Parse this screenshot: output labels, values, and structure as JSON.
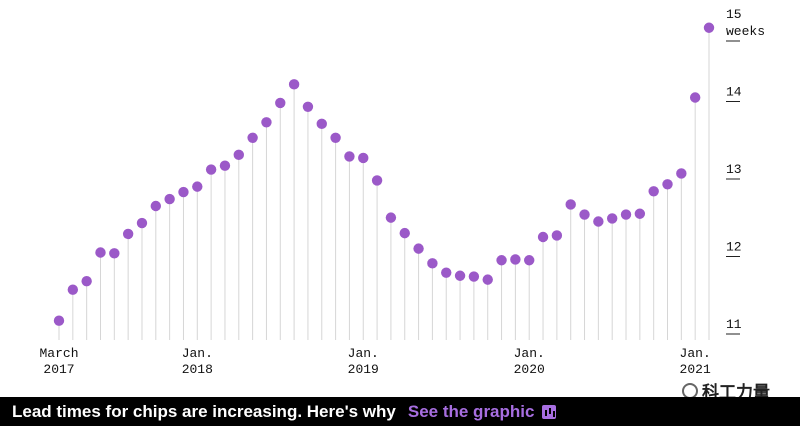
{
  "chart_data": {
    "type": "scatter",
    "title": "",
    "xlabel": "",
    "ylabel": "",
    "y_unit_label": "weeks",
    "ylim": [
      11,
      15
    ],
    "grid": false,
    "y_ticks": [
      {
        "value": 11,
        "label": "11"
      },
      {
        "value": 12,
        "label": "12"
      },
      {
        "value": 13,
        "label": "13"
      },
      {
        "value": 14,
        "label": "14"
      },
      {
        "value": 15,
        "label": "15"
      }
    ],
    "x_ticks": [
      {
        "index": 0,
        "line1": "March",
        "line2": "2017"
      },
      {
        "index": 10,
        "line1": "Jan.",
        "line2": "2018"
      },
      {
        "index": 22,
        "line1": "Jan.",
        "line2": "2019"
      },
      {
        "index": 34,
        "line1": "Jan.",
        "line2": "2020"
      },
      {
        "index": 46,
        "line1": "Jan.",
        "line2": "2021"
      }
    ],
    "series": [
      {
        "x": [
          "2017-03",
          "2017-04",
          "2017-05",
          "2017-06",
          "2017-07",
          "2017-08",
          "2017-09",
          "2017-10",
          "2017-11",
          "2017-12",
          "2018-01",
          "2018-02",
          "2018-03",
          "2018-04",
          "2018-05",
          "2018-06",
          "2018-07",
          "2018-08",
          "2018-09",
          "2018-10",
          "2018-11",
          "2018-12",
          "2019-01",
          "2019-02",
          "2019-03",
          "2019-04",
          "2019-05",
          "2019-06",
          "2019-07",
          "2019-08",
          "2019-09",
          "2019-10",
          "2019-11",
          "2019-12",
          "2020-01",
          "2020-02",
          "2020-03",
          "2020-04",
          "2020-05",
          "2020-06",
          "2020-07",
          "2020-08",
          "2020-09",
          "2020-10",
          "2020-11",
          "2020-12",
          "2021-01",
          "2021-02"
        ],
        "values": [
          11.12,
          11.52,
          11.63,
          12.0,
          11.99,
          12.24,
          12.38,
          12.6,
          12.69,
          12.78,
          12.85,
          13.07,
          13.12,
          13.26,
          13.48,
          13.68,
          13.93,
          14.17,
          13.88,
          13.66,
          13.48,
          13.24,
          13.22,
          12.93,
          12.45,
          12.25,
          12.05,
          11.86,
          11.74,
          11.7,
          11.69,
          11.65,
          11.9,
          11.91,
          11.9,
          12.2,
          12.22,
          12.62,
          12.49,
          12.4,
          12.44,
          12.49,
          12.5,
          12.79,
          12.88,
          13.02,
          14.0,
          14.9
        ]
      }
    ]
  },
  "watermark": "科工力量",
  "bottom_bar": {
    "headline": "Lead times for chips are increasing. Here's why",
    "link": "See the graphic"
  }
}
